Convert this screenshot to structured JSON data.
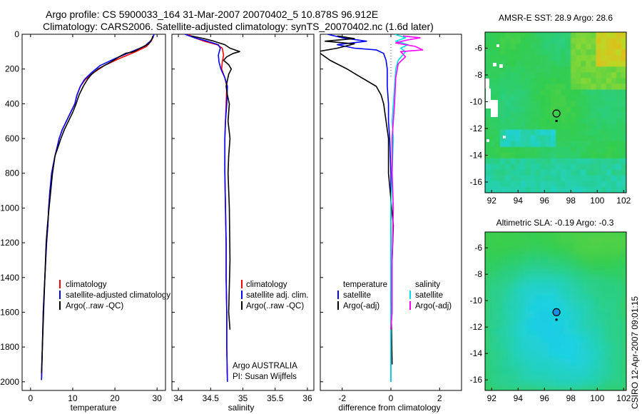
{
  "figure": {
    "title_line1": "Argo profile: CS 5900033_164 31-Mar-2007 20070402_5 10.878S 96.912E",
    "title_line2": "Climatology: CARS2006. Satellite-adjusted climatology: synTS_20070402.nc (1.6d later)",
    "watermark": "CSIRO 12-Apr-2007 09:01:15",
    "credit_line1": "Argo AUSTRALIA",
    "credit_line2": "PI: Susan Wijffels"
  },
  "colors": {
    "climatology": "#ff0000",
    "satellite": "#0000ff",
    "argo": "#000000",
    "sat_cyan": "#00e0e0",
    "argo_adj": "#ff00ff"
  },
  "chart_data": [
    {
      "id": "temperature",
      "type": "line",
      "xlabel": "temperature",
      "ylabel": "",
      "xlim": [
        -2,
        32
      ],
      "ylim": [
        2050,
        0
      ],
      "xticks": [
        0,
        10,
        20,
        30
      ],
      "yticks": [
        0,
        200,
        400,
        600,
        800,
        1000,
        1200,
        1400,
        1600,
        1800,
        2000
      ],
      "legend": [
        "climatology",
        "satellite-adjusted climatology",
        "Argo(..raw -QC)"
      ],
      "series": [
        {
          "name": "climatology",
          "color": "#ff0000",
          "x": [
            29.3,
            29.0,
            28.6,
            27.5,
            25.0,
            21.0,
            17.5,
            15.0,
            13.0,
            11.8,
            11.0,
            10.5,
            9.5,
            8.5,
            7.5,
            6.8,
            6.3,
            5.8,
            5.4,
            5.0,
            4.6,
            4.3,
            4.1,
            3.8,
            3.6,
            3.4,
            3.2,
            3.0,
            2.8,
            2.6
          ],
          "y": [
            0,
            20,
            40,
            70,
            100,
            140,
            180,
            220,
            260,
            300,
            350,
            400,
            450,
            500,
            550,
            600,
            650,
            700,
            750,
            800,
            900,
            1000,
            1100,
            1200,
            1300,
            1400,
            1500,
            1600,
            1800,
            1990
          ]
        },
        {
          "name": "satellite-adjusted climatology",
          "color": "#0000ff",
          "x": [
            29.3,
            29.0,
            28.4,
            27.0,
            24.0,
            20.0,
            16.5,
            14.5,
            12.8,
            11.8,
            11.0,
            10.5,
            9.5,
            8.5,
            7.5,
            6.8,
            6.3,
            5.8,
            5.4,
            5.0,
            4.6,
            4.3,
            4.1,
            3.8,
            3.6,
            3.4,
            3.2,
            3.0,
            2.8,
            2.6
          ],
          "y": [
            0,
            20,
            40,
            70,
            100,
            140,
            180,
            220,
            260,
            300,
            350,
            400,
            450,
            500,
            550,
            600,
            650,
            700,
            750,
            800,
            900,
            1000,
            1100,
            1200,
            1300,
            1400,
            1500,
            1600,
            1800,
            1990
          ]
        },
        {
          "name": "Argo(..raw -QC)",
          "color": "#000000",
          "x": [
            29.0,
            28.8,
            28.5,
            28.0,
            26.0,
            24.5,
            22.5,
            21.0,
            19.0,
            17.5,
            16.0,
            14.5,
            13.5,
            12.5,
            11.5,
            10.8,
            10.0,
            9.0,
            8.0,
            7.2,
            6.5,
            5.8,
            5.2,
            4.8,
            4.4,
            4.0,
            3.7,
            3.4,
            3.1,
            2.8,
            2.6
          ],
          "y": [
            10,
            25,
            40,
            55,
            80,
            100,
            110,
            130,
            160,
            180,
            200,
            230,
            260,
            300,
            350,
            400,
            450,
            500,
            550,
            600,
            650,
            700,
            800,
            900,
            1000,
            1100,
            1200,
            1400,
            1600,
            1800,
            1950
          ]
        }
      ]
    },
    {
      "id": "salinity",
      "type": "line",
      "xlabel": "salinity",
      "xlim": [
        33.9,
        36.1
      ],
      "ylim": [
        2050,
        0
      ],
      "xticks": [
        34,
        34.5,
        35,
        35.5,
        36
      ],
      "xtick_labels": [
        "34",
        "34.5",
        "35",
        "35.5",
        "36"
      ],
      "legend": [
        "climatology",
        "satellite adj. clim.",
        "Argo(..raw -QC)"
      ],
      "series": [
        {
          "name": "climatology",
          "color": "#ff0000",
          "x": [
            34.15,
            34.25,
            34.4,
            34.6,
            34.68,
            34.7,
            34.68,
            34.67,
            34.72,
            34.75,
            34.74,
            34.73,
            34.72,
            34.72,
            34.73,
            34.74,
            34.74,
            34.75,
            34.75,
            34.76
          ],
          "y": [
            0,
            20,
            40,
            60,
            80,
            120,
            160,
            200,
            250,
            300,
            400,
            500,
            600,
            800,
            1000,
            1200,
            1400,
            1600,
            1800,
            2000
          ]
        },
        {
          "name": "satellite adj. clim.",
          "color": "#0000ff",
          "x": [
            34.1,
            34.25,
            34.45,
            34.62,
            34.65,
            34.62,
            34.63,
            34.66,
            34.72,
            34.76,
            34.75,
            34.73,
            34.72,
            34.72,
            34.73,
            34.74,
            34.74,
            34.75,
            34.75,
            34.76
          ],
          "y": [
            0,
            20,
            40,
            60,
            80,
            120,
            160,
            200,
            250,
            300,
            400,
            500,
            600,
            800,
            1000,
            1200,
            1400,
            1600,
            1800,
            2000
          ]
        },
        {
          "name": "Argo(..raw -QC)",
          "color": "#000000",
          "x": [
            34.2,
            34.4,
            34.55,
            34.72,
            34.8,
            34.95,
            34.85,
            34.75,
            34.7,
            34.78,
            34.82,
            34.78,
            34.74,
            34.76,
            34.79,
            34.77,
            34.8,
            34.78,
            34.77,
            34.79,
            34.8,
            34.78,
            34.8
          ],
          "y": [
            10,
            25,
            40,
            60,
            80,
            100,
            110,
            130,
            150,
            175,
            200,
            230,
            300,
            350,
            400,
            500,
            600,
            700,
            800,
            1000,
            1300,
            1600,
            1700
          ]
        }
      ]
    },
    {
      "id": "difference",
      "type": "line",
      "xlabel": "difference from climatology",
      "xlim": [
        -2.9,
        2.9
      ],
      "ylim": [
        2050,
        0
      ],
      "xticks": [
        -2,
        0,
        2
      ],
      "legend": [
        "temperature",
        "satellite",
        "Argo(-adj)",
        "salinity",
        "satellite",
        "Argo(-adj)"
      ],
      "series": [
        {
          "name": "temperature satellite",
          "color": "#0000ff",
          "x": [
            -2.6,
            -2.0,
            -1.0,
            -2.2,
            -1.5,
            -0.6,
            -0.3,
            -0.2,
            -0.15,
            -0.15,
            -0.1,
            -0.1,
            -0.05,
            0.0,
            0.0,
            0.0,
            0.0,
            0.0
          ],
          "y": [
            0,
            20,
            40,
            60,
            80,
            90,
            110,
            150,
            200,
            300,
            400,
            500,
            600,
            800,
            1000,
            1400,
            1800,
            2000
          ]
        },
        {
          "name": "temperature Argo(-adj)",
          "color": "#000000",
          "x": [
            -2.2,
            -1.5,
            -2.7,
            -1.5,
            -2.2,
            -3.0,
            -2.5,
            -1.8,
            -1.2,
            -0.6,
            -0.4,
            -0.3,
            -0.2,
            -0.1,
            -0.1,
            0.1,
            0.0,
            0.05
          ],
          "y": [
            10,
            25,
            40,
            55,
            80,
            100,
            150,
            200,
            250,
            300,
            350,
            400,
            500,
            600,
            800,
            1100,
            1500,
            1900
          ]
        },
        {
          "name": "salinity satellite",
          "color": "#00e0e0",
          "x": [
            0.15,
            0.6,
            0.2,
            0.7,
            0.4,
            0.6,
            0.3,
            0.2,
            0.15,
            0.1,
            0.05,
            0.1,
            0.05,
            0.0,
            0.0,
            0.0
          ],
          "y": [
            0,
            20,
            40,
            60,
            80,
            100,
            150,
            200,
            300,
            400,
            500,
            600,
            800,
            1000,
            1500,
            2000
          ]
        },
        {
          "name": "salinity Argo(-adj)",
          "color": "#ff00ff",
          "x": [
            0.5,
            1.2,
            0.6,
            0.2,
            1.0,
            1.3,
            0.4,
            0.6,
            0.3,
            0.2,
            0.15,
            0.1,
            0.05,
            0.05,
            0.1,
            0.05,
            0.05,
            0.0
          ],
          "y": [
            10,
            20,
            35,
            50,
            70,
            90,
            100,
            130,
            170,
            250,
            400,
            500,
            600,
            800,
            1000,
            1300,
            1600,
            1700
          ]
        }
      ]
    },
    {
      "id": "sst-map",
      "type": "heatmap",
      "title": "AMSR-E SST: 28.9 Argo: 28.6",
      "xlim": [
        91.5,
        102.2
      ],
      "ylim": [
        -16.8,
        -4.8
      ],
      "xticks": [
        92,
        94,
        96,
        98,
        100,
        102
      ],
      "yticks": [
        -6,
        -8,
        -10,
        -12,
        -14,
        -16
      ],
      "profile_location": {
        "lon": 96.912,
        "lat": -10.878
      }
    },
    {
      "id": "sla-map",
      "type": "heatmap",
      "title": "Altimetric SLA: -0.19 Argo: -0.3",
      "xlim": [
        91.5,
        102.2
      ],
      "ylim": [
        -16.8,
        -4.8
      ],
      "xticks": [
        92,
        94,
        96,
        98,
        100,
        102
      ],
      "yticks": [
        -6,
        -8,
        -10,
        -12,
        -14,
        -16
      ],
      "profile_location": {
        "lon": 96.912,
        "lat": -10.878
      }
    }
  ]
}
